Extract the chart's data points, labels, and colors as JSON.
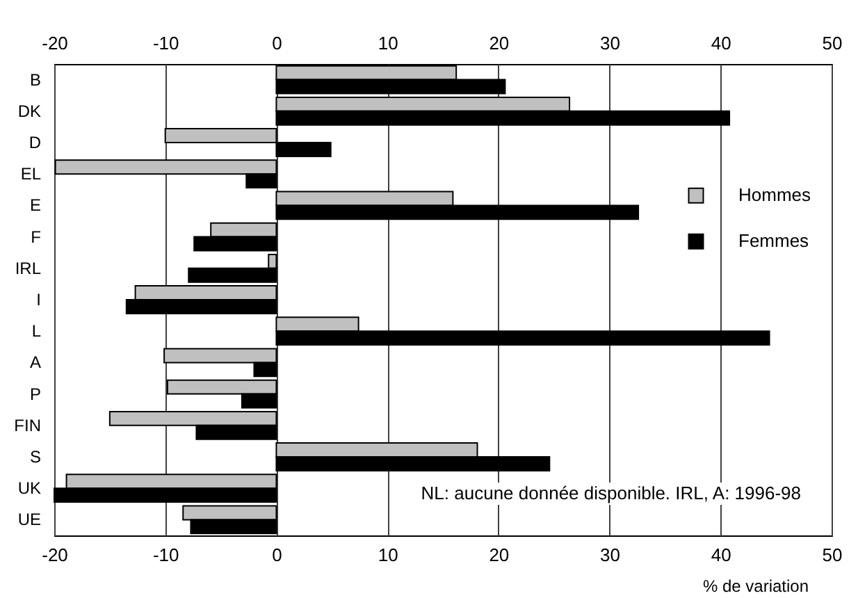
{
  "chart_data": {
    "type": "bar",
    "orientation": "horizontal",
    "xlabel": "% de variation",
    "categories": [
      "B",
      "DK",
      "D",
      "EL",
      "E",
      "F",
      "IRL",
      "I",
      "L",
      "A",
      "P",
      "FIN",
      "S",
      "UK",
      "UE"
    ],
    "series": [
      {
        "name": "Hommes",
        "color": "#c0c0c0",
        "values": [
          16.2,
          26.4,
          -10,
          -19.9,
          15.9,
          -5.9,
          -0.7,
          -12.7,
          7.4,
          -10.1,
          -9.8,
          -15,
          18.1,
          -18.9,
          -8.4
        ]
      },
      {
        "name": "Femmes",
        "color": "#000000",
        "values": [
          20.6,
          40.8,
          4.9,
          -2.7,
          32.6,
          -7.4,
          -7.9,
          -13.5,
          44.4,
          -2,
          -3.1,
          -7.2,
          24.6,
          -20,
          -7.7
        ]
      }
    ],
    "xlim": [
      -20,
      50
    ],
    "xticks": [
      -20,
      -10,
      0,
      10,
      20,
      30,
      40,
      50
    ],
    "x2lim": [
      -20,
      50
    ],
    "x2ticks": [
      -20,
      -10,
      0,
      10,
      20,
      30,
      40,
      50
    ],
    "grid": "x",
    "legend": "right",
    "annotations": [
      "NL: aucune donnée disponible. IRL, A: 1996-98"
    ]
  }
}
